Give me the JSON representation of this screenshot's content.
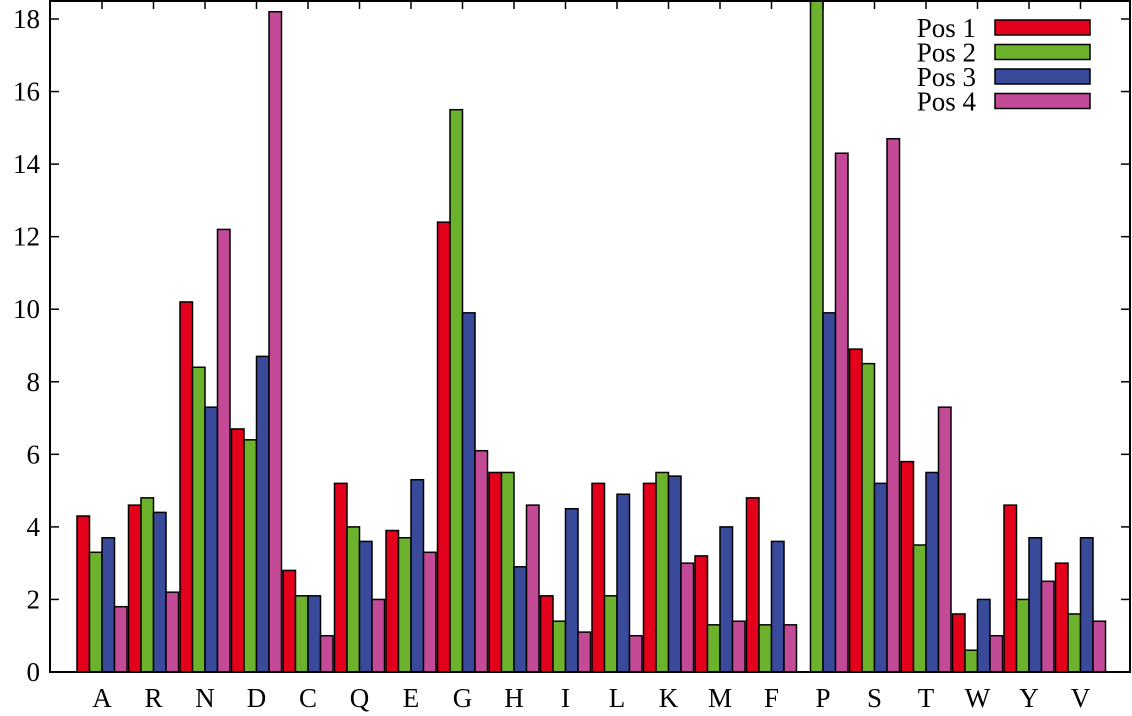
{
  "chart_data": {
    "type": "bar",
    "title": "",
    "xlabel": "",
    "ylabel": "",
    "ylim": [
      0,
      18.5
    ],
    "yticks": [
      0,
      2,
      4,
      6,
      8,
      10,
      12,
      14,
      16,
      18
    ],
    "grid": false,
    "legend_position": "top-right",
    "categories": [
      "A",
      "R",
      "N",
      "D",
      "C",
      "Q",
      "E",
      "G",
      "H",
      "I",
      "L",
      "K",
      "M",
      "F",
      "P",
      "S",
      "T",
      "W",
      "Y",
      "V"
    ],
    "series": [
      {
        "name": "Pos 1",
        "color": "#e3001b",
        "values": [
          4.3,
          4.6,
          10.2,
          6.7,
          2.8,
          5.2,
          3.9,
          12.4,
          5.5,
          2.1,
          5.2,
          5.2,
          3.2,
          4.8,
          0.0,
          8.9,
          5.8,
          1.6,
          4.6,
          3.0
        ]
      },
      {
        "name": "Pos 2",
        "color": "#6cb22c",
        "values": [
          3.3,
          4.8,
          8.4,
          6.4,
          2.1,
          4.0,
          3.7,
          15.5,
          5.5,
          1.4,
          2.1,
          5.5,
          1.3,
          1.3,
          18.5,
          8.5,
          3.5,
          0.6,
          2.0,
          1.6
        ]
      },
      {
        "name": "Pos 3",
        "color": "#3a4a9a",
        "values": [
          3.7,
          4.4,
          7.3,
          8.7,
          2.1,
          3.6,
          5.3,
          9.9,
          2.9,
          4.5,
          4.9,
          5.4,
          4.0,
          3.6,
          9.9,
          5.2,
          5.5,
          2.0,
          3.7,
          3.7
        ]
      },
      {
        "name": "Pos 4",
        "color": "#c34a97",
        "values": [
          1.8,
          2.2,
          12.2,
          18.2,
          1.0,
          2.0,
          3.3,
          6.1,
          4.6,
          1.1,
          1.0,
          3.0,
          1.4,
          1.3,
          14.3,
          14.7,
          7.3,
          1.0,
          2.5,
          1.4
        ]
      }
    ]
  }
}
